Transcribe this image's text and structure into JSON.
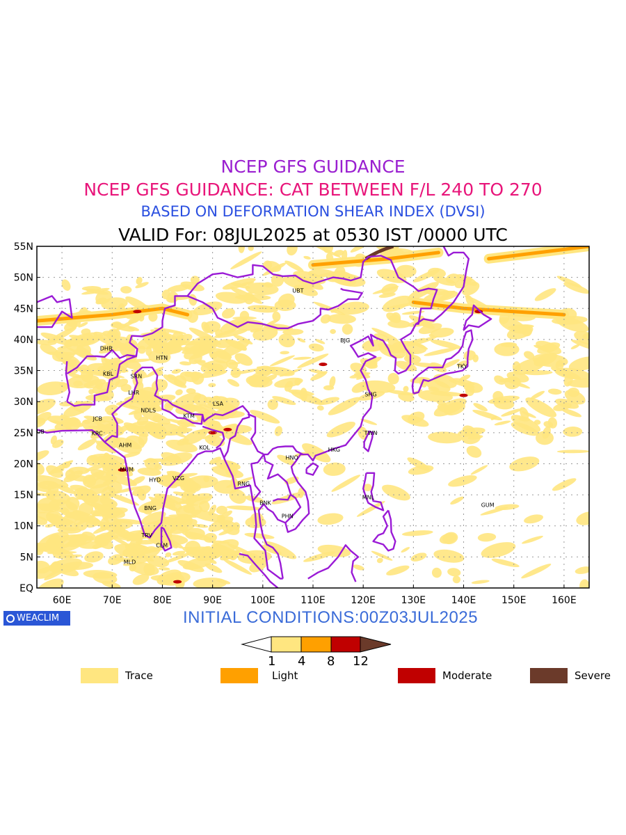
{
  "titles": {
    "line1": "NCEP GFS GUIDANCE",
    "line2": "NCEP GFS GUIDANCE: CAT BETWEEN F/L 240 TO 270",
    "line3": "BASED ON DEFORMATION SHEAR INDEX (DVSI)",
    "line4": "VALID For: 08JUL2025 at 0530 IST /0000 UTC"
  },
  "colors": {
    "line1": "#9a1fd0",
    "line2": "#e8157a",
    "line3": "#2a4fe0",
    "coast": "#9a1ad6",
    "trace": "#ffe680",
    "light": "#ffa000",
    "moderate": "#c00000",
    "severe": "#6b3a2a"
  },
  "map": {
    "lat_labels": [
      "55N",
      "50N",
      "45N",
      "40N",
      "35N",
      "30N",
      "25N",
      "20N",
      "15N",
      "10N",
      "5N",
      "EQ"
    ],
    "lon_labels": [
      "60E",
      "70E",
      "80E",
      "90E",
      "100E",
      "110E",
      "120E",
      "130E",
      "140E",
      "150E",
      "160E"
    ],
    "cities": [
      {
        "code": "UBT",
        "lon": 107,
        "lat": 47.9
      },
      {
        "code": "BJG",
        "lon": 116.4,
        "lat": 39.9
      },
      {
        "code": "DHB",
        "lon": 68.8,
        "lat": 38.6
      },
      {
        "code": "HTN",
        "lon": 79.9,
        "lat": 37.1
      },
      {
        "code": "KBL",
        "lon": 69.2,
        "lat": 34.5
      },
      {
        "code": "SRN",
        "lon": 74.8,
        "lat": 34.1
      },
      {
        "code": "LHR",
        "lon": 74.3,
        "lat": 31.5
      },
      {
        "code": "TKY",
        "lon": 139.7,
        "lat": 35.7
      },
      {
        "code": "SHG",
        "lon": 121.5,
        "lat": 31.2
      },
      {
        "code": "LSA",
        "lon": 91.1,
        "lat": 29.7
      },
      {
        "code": "JCB",
        "lon": 67.1,
        "lat": 27.3
      },
      {
        "code": "NDLS",
        "lon": 77.2,
        "lat": 28.6
      },
      {
        "code": "KTM",
        "lon": 85.3,
        "lat": 27.7
      },
      {
        "code": "DUB",
        "lon": 55.3,
        "lat": 25.2
      },
      {
        "code": "KRC",
        "lon": 67.0,
        "lat": 24.9
      },
      {
        "code": "TWN",
        "lon": 121.5,
        "lat": 25.0
      },
      {
        "code": "AHM",
        "lon": 72.6,
        "lat": 23.0
      },
      {
        "code": "KOL",
        "lon": 88.4,
        "lat": 22.6
      },
      {
        "code": "HNO",
        "lon": 105.8,
        "lat": 21.0
      },
      {
        "code": "HKG",
        "lon": 114.2,
        "lat": 22.3
      },
      {
        "code": "MUM",
        "lon": 72.9,
        "lat": 19.1
      },
      {
        "code": "HYD",
        "lon": 78.5,
        "lat": 17.4
      },
      {
        "code": "VZG",
        "lon": 83.2,
        "lat": 17.7
      },
      {
        "code": "RNG",
        "lon": 96.2,
        "lat": 16.8
      },
      {
        "code": "MNL",
        "lon": 121.0,
        "lat": 14.6
      },
      {
        "code": "GUM",
        "lon": 144.8,
        "lat": 13.4
      },
      {
        "code": "BNK",
        "lon": 100.5,
        "lat": 13.7
      },
      {
        "code": "BNG",
        "lon": 77.6,
        "lat": 12.9
      },
      {
        "code": "PHN",
        "lon": 104.9,
        "lat": 11.6
      },
      {
        "code": "TRV",
        "lon": 76.9,
        "lat": 8.5
      },
      {
        "code": "CLM",
        "lon": 79.9,
        "lat": 6.9
      },
      {
        "code": "MLD",
        "lon": 73.5,
        "lat": 4.2
      }
    ]
  },
  "footer": {
    "logo_text": "WEACLIM",
    "initial_conditions": "INITIAL CONDITIONS:00Z03JUL2025"
  },
  "colorbar": {
    "ticks": [
      "1",
      "4",
      "8",
      "12"
    ]
  },
  "legend": [
    {
      "label": "Trace",
      "color": "#ffe680"
    },
    {
      "label": "Light",
      "color": "#ffa000"
    },
    {
      "label": "Moderate",
      "color": "#c00000"
    },
    {
      "label": "Severe",
      "color": "#6b3a2a"
    }
  ]
}
